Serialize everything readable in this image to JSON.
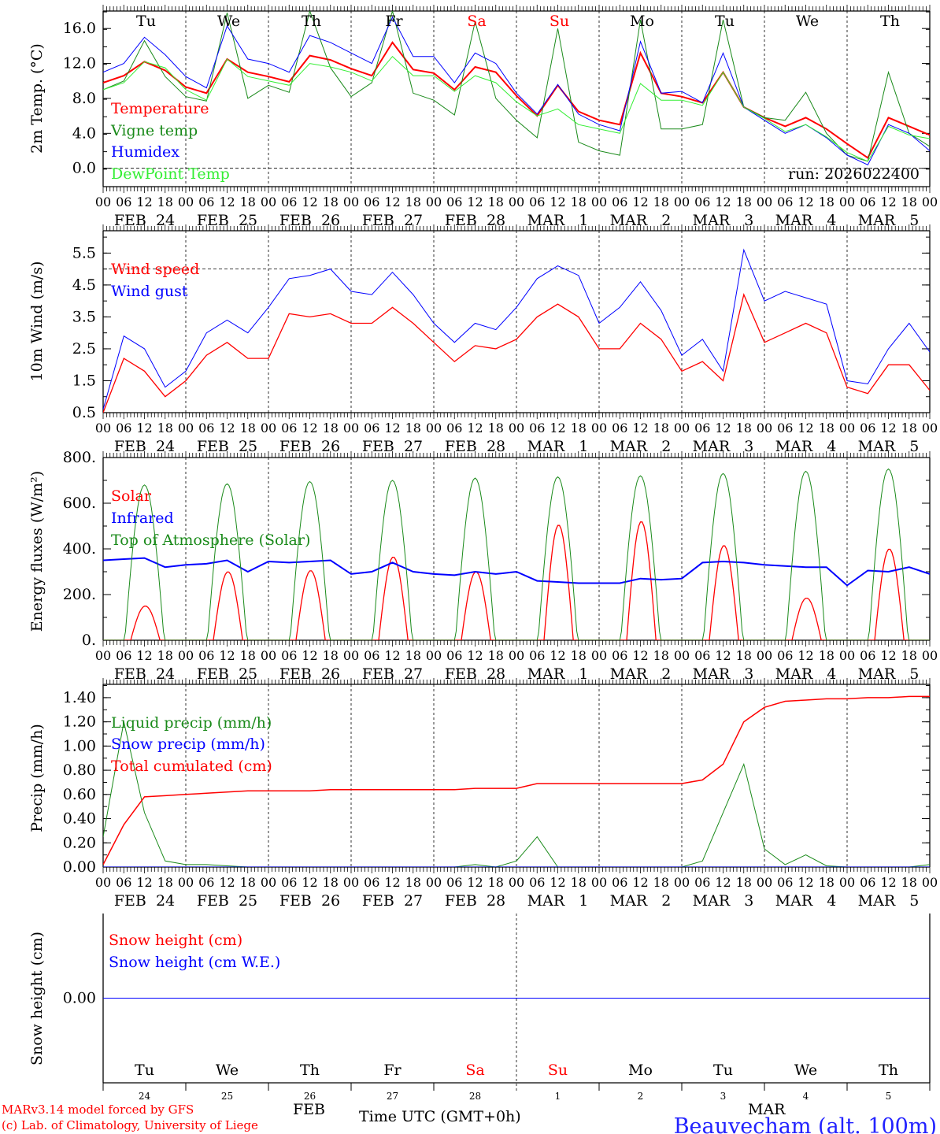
{
  "chart_data": [
    {
      "type": "line",
      "panel": "temperature",
      "ylabel": "2m Temp. (°C)",
      "ylim": [
        -2.1,
        18
      ],
      "yticks": [
        0,
        4,
        8,
        12,
        16
      ],
      "ytick_labels": [
        "0.0",
        "4.0",
        "8.0",
        "12.0",
        "16.0"
      ],
      "yminor_step": 2,
      "ref_line": 0,
      "x_step_hours": 6,
      "series": [
        {
          "name": "Temperature",
          "color": "#ff0000",
          "width": 2,
          "values": [
            9.8,
            10.6,
            12.2,
            11.2,
            9.3,
            8.6,
            12.5,
            11.0,
            10.5,
            9.9,
            12.9,
            12.4,
            11.4,
            10.6,
            14.4,
            11.3,
            10.9,
            9.0,
            11.6,
            11.0,
            8.3,
            6.0,
            9.5,
            6.5,
            5.5,
            5.0,
            13.2,
            8.6,
            8.2,
            7.5,
            11.0,
            7.0,
            5.8,
            4.8,
            5.8,
            4.5,
            2.8,
            1.2,
            5.8,
            4.8,
            3.8
          ]
        },
        {
          "name": "Vigne temp",
          "color": "#1a8a1a",
          "width": 1,
          "values": [
            9.0,
            10.0,
            14.6,
            10.5,
            8.2,
            7.7,
            17.8,
            8.0,
            9.5,
            8.7,
            18.0,
            11.5,
            8.2,
            9.8,
            18.0,
            8.6,
            7.8,
            6.1,
            16.8,
            8.0,
            5.5,
            3.5,
            16.0,
            3.0,
            2.0,
            1.5,
            17.0,
            4.5,
            4.5,
            5.0,
            17.0,
            7.0,
            5.8,
            5.5,
            8.7,
            4.0,
            1.5,
            0.8,
            11.0,
            4.0,
            2.5
          ]
        },
        {
          "name": "Humidex",
          "color": "#0000ff",
          "width": 1,
          "values": [
            11.0,
            12.0,
            15.0,
            13.0,
            10.5,
            9.2,
            16.3,
            12.5,
            12.0,
            11.0,
            15.2,
            14.4,
            13.2,
            12.0,
            17.3,
            12.8,
            12.8,
            9.8,
            13.2,
            12.0,
            8.6,
            6.2,
            9.6,
            6.2,
            5.0,
            4.3,
            14.5,
            8.6,
            8.8,
            7.5,
            13.2,
            7.0,
            5.5,
            4.0,
            5.0,
            3.5,
            1.5,
            0.4,
            5.0,
            4.0,
            2.0
          ]
        },
        {
          "name": "DewPoint Temp",
          "color": "#33ee33",
          "width": 1,
          "values": [
            9.0,
            9.8,
            12.2,
            11.5,
            9.0,
            7.8,
            12.5,
            10.5,
            10.0,
            9.5,
            12.0,
            11.6,
            11.0,
            10.0,
            12.8,
            10.6,
            10.6,
            8.8,
            10.6,
            9.8,
            7.6,
            6.0,
            6.8,
            5.0,
            4.5,
            4.0,
            9.7,
            7.8,
            7.8,
            7.2,
            11.0,
            7.0,
            5.7,
            4.2,
            5.0,
            3.6,
            1.8,
            0.8,
            4.8,
            3.8,
            3.4
          ]
        }
      ],
      "annotation": "run: 2026022400",
      "day_labels": [
        {
          "text": "Tu",
          "color": "#000000"
        },
        {
          "text": "We",
          "color": "#000000"
        },
        {
          "text": "Th",
          "color": "#000000"
        },
        {
          "text": "Fr",
          "color": "#000000"
        },
        {
          "text": "Sa",
          "color": "#ff0000"
        },
        {
          "text": "Su",
          "color": "#ff0000"
        },
        {
          "text": "Mo",
          "color": "#000000"
        },
        {
          "text": "Tu",
          "color": "#000000"
        },
        {
          "text": "We",
          "color": "#000000"
        },
        {
          "text": "Th",
          "color": "#000000"
        }
      ]
    },
    {
      "type": "line",
      "panel": "wind",
      "ylabel": "10m Wind (m/s)",
      "ylim": [
        0.5,
        6.2
      ],
      "yticks": [
        0.5,
        1.5,
        2.5,
        3.5,
        4.5,
        5.5
      ],
      "ytick_labels": [
        "0.5",
        "1.5",
        "2.5",
        "3.5",
        "4.5",
        "5.5"
      ],
      "yminor_step": 0.5,
      "ref_line": 5.0,
      "x_step_hours": 6,
      "series": [
        {
          "name": "Wind speed",
          "color": "#ff0000",
          "width": 1.3,
          "values": [
            0.5,
            2.2,
            1.8,
            1.0,
            1.5,
            2.3,
            2.7,
            2.2,
            2.2,
            3.6,
            3.5,
            3.6,
            3.3,
            3.3,
            3.8,
            3.3,
            2.7,
            2.1,
            2.6,
            2.5,
            2.8,
            3.5,
            3.9,
            3.5,
            2.5,
            2.5,
            3.3,
            2.8,
            1.8,
            2.1,
            1.5,
            4.2,
            2.7,
            3.0,
            3.3,
            3.0,
            1.3,
            1.1,
            2.0,
            2.0,
            1.2
          ]
        },
        {
          "name": "Wind gust",
          "color": "#0000ff",
          "width": 1,
          "values": [
            0.6,
            2.9,
            2.5,
            1.3,
            1.8,
            3.0,
            3.4,
            3.0,
            3.8,
            4.7,
            4.8,
            5.0,
            4.3,
            4.2,
            4.9,
            4.2,
            3.3,
            2.7,
            3.3,
            3.1,
            3.8,
            4.7,
            5.1,
            4.8,
            3.3,
            3.8,
            4.6,
            3.7,
            2.3,
            2.8,
            1.8,
            5.6,
            4.0,
            4.3,
            4.1,
            3.9,
            1.5,
            1.4,
            2.5,
            3.3,
            2.4
          ]
        }
      ]
    },
    {
      "type": "line",
      "panel": "energy",
      "ylabel": "Energy fluxes (W/m²)",
      "ylim": [
        0,
        800
      ],
      "yticks": [
        0,
        200,
        400,
        600,
        800
      ],
      "ytick_labels": [
        "0.",
        "200.",
        "400.",
        "600.",
        "800."
      ],
      "yminor_step": 100,
      "series": [
        {
          "name": "Solar",
          "color": "#ff0000",
          "width": 1.3,
          "daily_peak": [
            150,
            300,
            305,
            365,
            300,
            505,
            520,
            415,
            185,
            400
          ]
        },
        {
          "name": "Infrared",
          "color": "#0000ff",
          "width": 2,
          "x_step_hours": 6,
          "values": [
            350,
            355,
            360,
            320,
            330,
            335,
            350,
            300,
            345,
            340,
            345,
            350,
            290,
            300,
            340,
            300,
            290,
            285,
            300,
            290,
            300,
            260,
            255,
            250,
            250,
            250,
            270,
            265,
            270,
            340,
            345,
            340,
            330,
            325,
            320,
            320,
            240,
            305,
            300,
            320,
            290
          ]
        },
        {
          "name": "Top of Atmosphere (Solar)",
          "color": "#1a8a1a",
          "width": 1,
          "daily_peak": [
            680,
            685,
            695,
            700,
            710,
            715,
            720,
            730,
            740,
            750
          ]
        }
      ]
    },
    {
      "type": "line",
      "panel": "precip",
      "ylabel": "Precip (mm/h)",
      "ylim": [
        0,
        1.51
      ],
      "yticks": [
        0,
        0.2,
        0.4,
        0.6,
        0.8,
        1.0,
        1.2,
        1.4
      ],
      "ytick_labels": [
        "0.00",
        "0.20",
        "0.40",
        "0.60",
        "0.80",
        "1.00",
        "1.20",
        "1.40"
      ],
      "yminor_step": 0.1,
      "x_step_hours": 6,
      "series": [
        {
          "name": "Liquid precip (mm/h)",
          "color": "#1a8a1a",
          "width": 1,
          "values": [
            0.25,
            1.2,
            0.45,
            0.05,
            0.02,
            0.02,
            0.01,
            0.0,
            0.0,
            0.0,
            0.0,
            0.0,
            0.0,
            0.0,
            0.0,
            0.0,
            0.0,
            0.0,
            0.02,
            0.0,
            0.05,
            0.25,
            0.0,
            0.0,
            0.0,
            0.0,
            0.0,
            0.0,
            0.0,
            0.05,
            0.45,
            0.85,
            0.15,
            0.02,
            0.1,
            0.01,
            0.0,
            0.0,
            0.0,
            0.0,
            0.02
          ]
        },
        {
          "name": "Snow precip (mm/h)",
          "color": "#0000ff",
          "width": 1,
          "values": [
            0,
            0,
            0,
            0,
            0,
            0,
            0,
            0,
            0,
            0,
            0,
            0,
            0,
            0,
            0,
            0,
            0,
            0,
            0,
            0,
            0,
            0,
            0,
            0,
            0,
            0,
            0,
            0,
            0,
            0,
            0,
            0,
            0,
            0,
            0,
            0,
            0,
            0,
            0,
            0,
            0
          ]
        },
        {
          "name": "Total cumulated (cm)",
          "color": "#ff0000",
          "width": 1.5,
          "values": [
            0.02,
            0.35,
            0.58,
            0.59,
            0.6,
            0.61,
            0.62,
            0.63,
            0.63,
            0.63,
            0.63,
            0.64,
            0.64,
            0.64,
            0.64,
            0.64,
            0.64,
            0.64,
            0.65,
            0.65,
            0.65,
            0.69,
            0.69,
            0.69,
            0.69,
            0.69,
            0.69,
            0.69,
            0.69,
            0.72,
            0.85,
            1.2,
            1.32,
            1.37,
            1.38,
            1.39,
            1.39,
            1.4,
            1.4,
            1.41,
            1.41
          ]
        }
      ]
    },
    {
      "type": "line",
      "panel": "snow",
      "ylabel": "Snow height (cm)",
      "ylim": [
        -1,
        1
      ],
      "yticks": [
        0
      ],
      "ytick_labels": [
        "0.00"
      ],
      "x_step_hours": 240,
      "series": [
        {
          "name": "Snow height (cm)",
          "color": "#ff0000",
          "width": 1,
          "values": [
            0,
            0
          ]
        },
        {
          "name": "Snow height (cm W.E.)",
          "color": "#0000ff",
          "width": 1,
          "values": [
            0,
            0
          ]
        }
      ],
      "day_labels": [
        {
          "text": "Tu",
          "color": "#000000"
        },
        {
          "text": "We",
          "color": "#000000"
        },
        {
          "text": "Th",
          "color": "#000000"
        },
        {
          "text": "Fr",
          "color": "#000000"
        },
        {
          "text": "Sa",
          "color": "#ff0000"
        },
        {
          "text": "Su",
          "color": "#ff0000"
        },
        {
          "text": "Mo",
          "color": "#000000"
        },
        {
          "text": "Tu",
          "color": "#000000"
        },
        {
          "text": "We",
          "color": "#000000"
        },
        {
          "text": "Th",
          "color": "#000000"
        }
      ],
      "day_numbers": [
        "24",
        "25",
        "26",
        "27",
        "28",
        "1",
        "2",
        "3",
        "4",
        "5"
      ],
      "month_labels": [
        "FEB",
        "MAR"
      ]
    }
  ],
  "x_axis": {
    "hour_labels": [
      "00",
      "06",
      "12",
      "18"
    ],
    "date_labels": [
      "FEB  24",
      "FEB  25",
      "FEB  26",
      "FEB  27",
      "FEB  28",
      "MAR   1",
      "MAR   2",
      "MAR   3",
      "MAR   4",
      "MAR   5"
    ],
    "title": "Time UTC (GMT+0h)"
  },
  "footer": {
    "model": "MARv3.14 model forced by GFS",
    "credit": "(c) Lab. of Climatology, University of Liege",
    "station": "Beauvecham (alt. 100m)"
  }
}
